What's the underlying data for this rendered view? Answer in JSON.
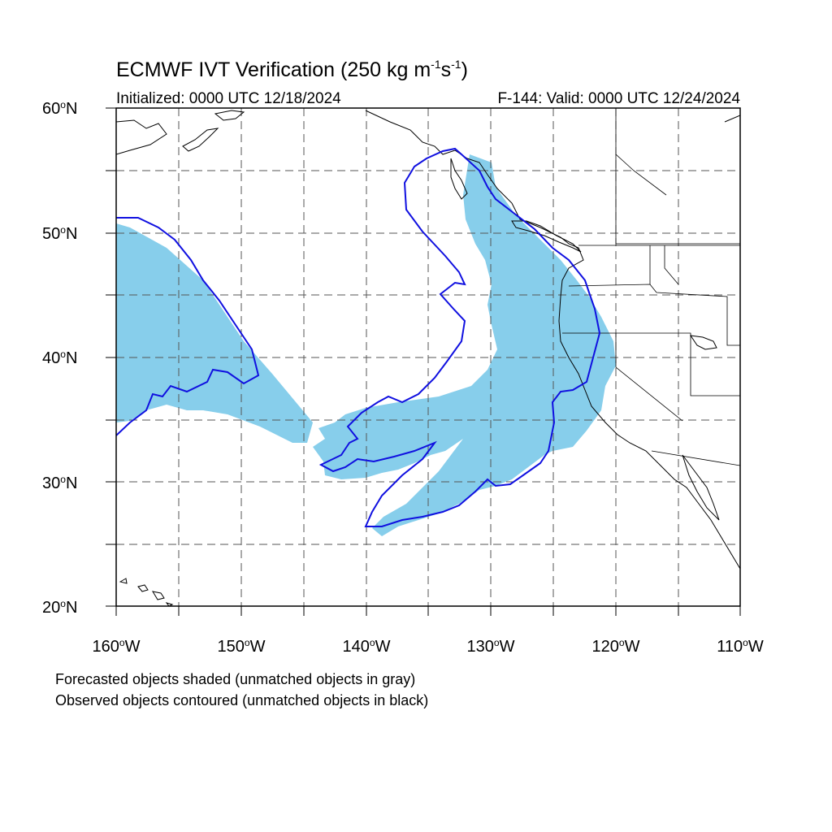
{
  "header": {
    "title_main": "ECMWF IVT Verification (250 kg m",
    "title_sup1": "-1",
    "title_mid": "s",
    "title_sup2": "-1",
    "title_end": ")",
    "initialized": "Initialized: 0000 UTC 12/18/2024",
    "valid": "F-144: Valid: 0000 UTC 12/24/2024"
  },
  "map": {
    "extent": {
      "lon_min": -160,
      "lon_max": -110,
      "lat_min": 20,
      "lat_max": 60
    },
    "lat_labels": [
      {
        "value": "60",
        "suffix": "N"
      },
      {
        "value": "50",
        "suffix": "N"
      },
      {
        "value": "40",
        "suffix": "N"
      },
      {
        "value": "30",
        "suffix": "N"
      },
      {
        "value": "20",
        "suffix": "N"
      }
    ],
    "lon_labels": [
      {
        "value": "160",
        "suffix": "W"
      },
      {
        "value": "150",
        "suffix": "W"
      },
      {
        "value": "140",
        "suffix": "W"
      },
      {
        "value": "130",
        "suffix": "W"
      },
      {
        "value": "120",
        "suffix": "W"
      },
      {
        "value": "110",
        "suffix": "W"
      }
    ],
    "colors": {
      "forecast_fill": "#87ceeb",
      "observed_contour": "#1010e0",
      "coastline": "#000000",
      "grid": "#555555"
    }
  },
  "footer": {
    "line1": "Forecasted objects shaded (unmatched objects in gray)",
    "line2": "Observed objects contoured (unmatched objects in black)"
  }
}
